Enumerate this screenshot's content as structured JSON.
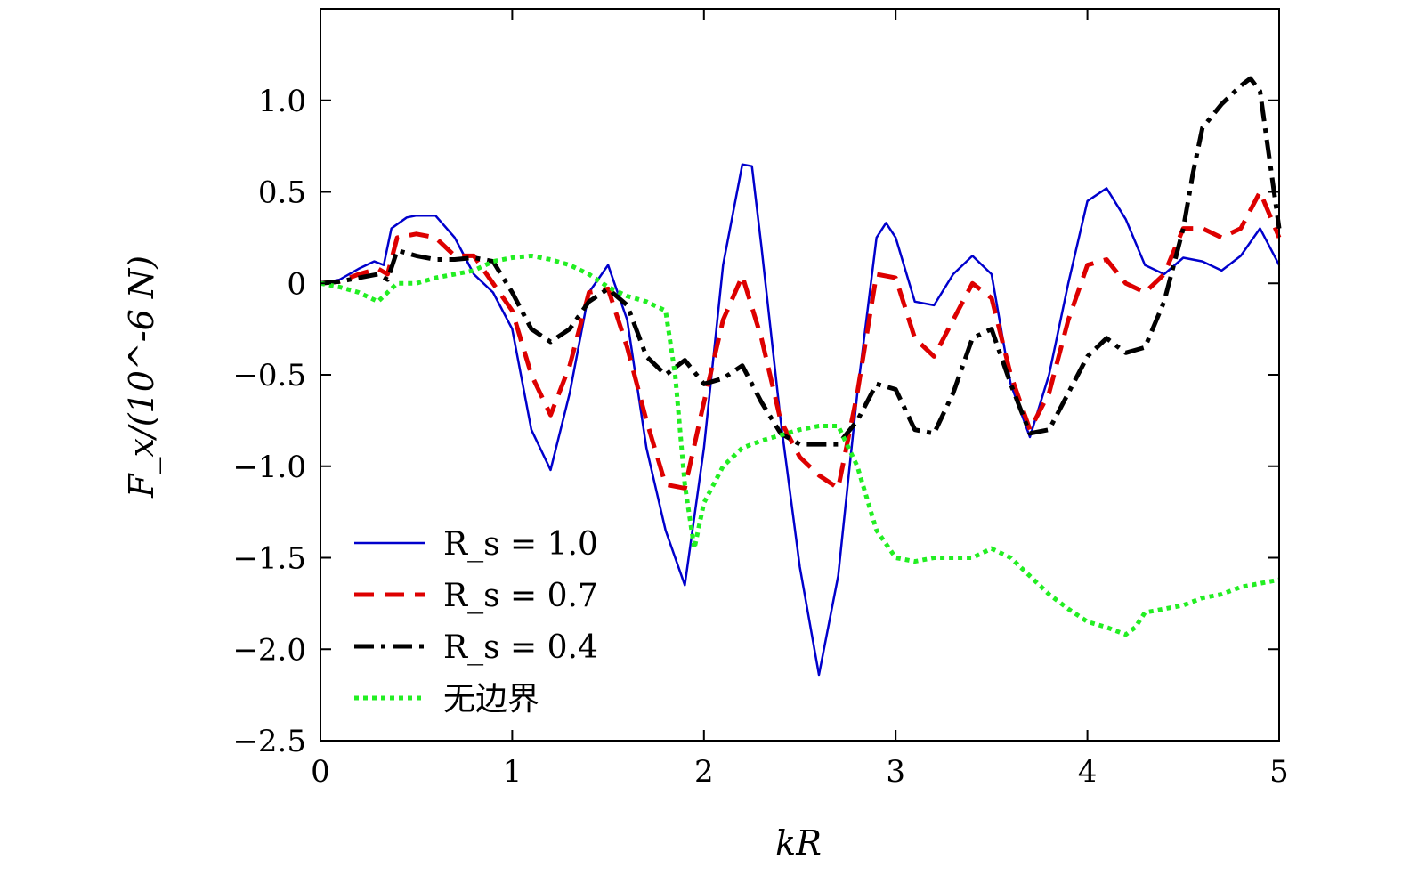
{
  "chart_data": {
    "type": "line",
    "xlabel": "kR",
    "ylabel": "F_x/(10^-6 N)",
    "xlim": [
      0,
      5
    ],
    "ylim": [
      -2.5,
      1.5
    ],
    "xticks": [
      0,
      1,
      2,
      3,
      4,
      5
    ],
    "xtick_labels": [
      "0",
      "1",
      "2",
      "3",
      "4",
      "5"
    ],
    "yticks": [
      1.0,
      0.5,
      0,
      -0.5,
      -1.0,
      -1.5,
      -2.0,
      -2.5
    ],
    "ytick_labels": [
      "1.0",
      "0.5",
      "0",
      "−0.5",
      "−1.0",
      "−1.5",
      "−2.0",
      "−2.5"
    ],
    "grid": false,
    "legend_position": "bottom-left",
    "series": [
      {
        "name": "Rs = 1.0",
        "legend_label": "R_s = 1.0",
        "color": "#0000cc",
        "style": "solid",
        "x": [
          0,
          0.1,
          0.2,
          0.28,
          0.33,
          0.37,
          0.45,
          0.5,
          0.6,
          0.7,
          0.8,
          0.9,
          1.0,
          1.1,
          1.2,
          1.3,
          1.4,
          1.5,
          1.6,
          1.7,
          1.8,
          1.9,
          2.0,
          2.1,
          2.2,
          2.25,
          2.3,
          2.4,
          2.5,
          2.6,
          2.7,
          2.8,
          2.9,
          2.95,
          3.0,
          3.1,
          3.2,
          3.3,
          3.4,
          3.5,
          3.6,
          3.7,
          3.8,
          3.9,
          4.0,
          4.1,
          4.2,
          4.3,
          4.4,
          4.5,
          4.6,
          4.7,
          4.8,
          4.9,
          5.0
        ],
        "y": [
          0,
          0.02,
          0.08,
          0.12,
          0.1,
          0.3,
          0.36,
          0.37,
          0.37,
          0.25,
          0.05,
          -0.05,
          -0.25,
          -0.8,
          -1.02,
          -0.6,
          -0.05,
          0.1,
          -0.2,
          -0.9,
          -1.35,
          -1.65,
          -0.9,
          0.1,
          0.65,
          0.64,
          0.2,
          -0.75,
          -1.55,
          -2.14,
          -1.6,
          -0.6,
          0.25,
          0.33,
          0.25,
          -0.1,
          -0.12,
          0.05,
          0.15,
          0.05,
          -0.55,
          -0.84,
          -0.5,
          0.0,
          0.45,
          0.52,
          0.35,
          0.1,
          0.05,
          0.14,
          0.12,
          0.07,
          0.15,
          0.3,
          0.1
        ]
      },
      {
        "name": "Rs = 0.7",
        "legend_label": "R_s = 0.7",
        "color": "#dd0000",
        "style": "dashed",
        "x": [
          0,
          0.1,
          0.2,
          0.3,
          0.35,
          0.4,
          0.5,
          0.6,
          0.7,
          0.8,
          0.9,
          1.0,
          1.1,
          1.2,
          1.3,
          1.4,
          1.5,
          1.6,
          1.7,
          1.8,
          1.9,
          2.0,
          2.1,
          2.2,
          2.3,
          2.4,
          2.5,
          2.6,
          2.7,
          2.8,
          2.9,
          3.0,
          3.1,
          3.2,
          3.3,
          3.4,
          3.5,
          3.6,
          3.7,
          3.8,
          3.9,
          4.0,
          4.1,
          4.2,
          4.3,
          4.4,
          4.5,
          4.6,
          4.7,
          4.8,
          4.9,
          5.0
        ],
        "y": [
          0,
          0.01,
          0.05,
          0.08,
          0.05,
          0.25,
          0.27,
          0.25,
          0.15,
          0.15,
          0.0,
          -0.15,
          -0.5,
          -0.72,
          -0.45,
          -0.05,
          -0.03,
          -0.35,
          -0.75,
          -1.1,
          -1.12,
          -0.65,
          -0.2,
          0.04,
          -0.3,
          -0.75,
          -0.95,
          -1.05,
          -1.12,
          -0.6,
          0.05,
          0.03,
          -0.3,
          -0.4,
          -0.2,
          0.0,
          -0.08,
          -0.5,
          -0.8,
          -0.6,
          -0.2,
          0.1,
          0.13,
          0.0,
          -0.05,
          0.05,
          0.3,
          0.3,
          0.25,
          0.3,
          0.5,
          0.25
        ]
      },
      {
        "name": "Rs = 0.4",
        "legend_label": "R_s = 0.4",
        "color": "#000000",
        "style": "dashdot",
        "x": [
          0,
          0.1,
          0.2,
          0.3,
          0.35,
          0.4,
          0.5,
          0.6,
          0.7,
          0.8,
          0.9,
          1.0,
          1.1,
          1.2,
          1.3,
          1.4,
          1.5,
          1.6,
          1.7,
          1.8,
          1.9,
          2.0,
          2.1,
          2.2,
          2.3,
          2.4,
          2.5,
          2.6,
          2.7,
          2.8,
          2.9,
          3.0,
          3.1,
          3.2,
          3.3,
          3.4,
          3.5,
          3.6,
          3.7,
          3.8,
          3.9,
          4.0,
          4.1,
          4.2,
          4.3,
          4.4,
          4.5,
          4.55,
          4.6,
          4.7,
          4.8,
          4.85,
          4.9,
          5.0
        ],
        "y": [
          0,
          0.01,
          0.03,
          0.05,
          0.02,
          0.18,
          0.15,
          0.13,
          0.13,
          0.14,
          0.12,
          -0.05,
          -0.25,
          -0.32,
          -0.25,
          -0.1,
          -0.03,
          -0.12,
          -0.4,
          -0.5,
          -0.42,
          -0.55,
          -0.52,
          -0.45,
          -0.65,
          -0.82,
          -0.88,
          -0.88,
          -0.88,
          -0.75,
          -0.55,
          -0.58,
          -0.8,
          -0.82,
          -0.6,
          -0.3,
          -0.25,
          -0.55,
          -0.82,
          -0.8,
          -0.6,
          -0.4,
          -0.3,
          -0.38,
          -0.35,
          -0.1,
          0.3,
          0.6,
          0.85,
          0.98,
          1.08,
          1.12,
          1.05,
          0.3
        ]
      },
      {
        "name": "无边界",
        "legend_label": "无边界",
        "color": "#22ee22",
        "style": "dotted",
        "x": [
          0,
          0.1,
          0.2,
          0.3,
          0.35,
          0.4,
          0.5,
          0.6,
          0.7,
          0.8,
          0.9,
          1.0,
          1.1,
          1.2,
          1.3,
          1.4,
          1.5,
          1.6,
          1.7,
          1.8,
          1.85,
          1.9,
          1.95,
          2.0,
          2.1,
          2.2,
          2.3,
          2.4,
          2.5,
          2.6,
          2.7,
          2.8,
          2.9,
          3.0,
          3.1,
          3.2,
          3.25,
          3.3,
          3.4,
          3.5,
          3.6,
          3.7,
          3.8,
          3.9,
          4.0,
          4.1,
          4.2,
          4.25,
          4.3,
          4.4,
          4.5,
          4.6,
          4.7,
          4.8,
          4.9,
          5.0
        ],
        "y": [
          0,
          -0.02,
          -0.05,
          -0.1,
          -0.05,
          0.0,
          0.0,
          0.03,
          0.05,
          0.07,
          0.12,
          0.14,
          0.15,
          0.13,
          0.1,
          0.05,
          -0.02,
          -0.07,
          -0.1,
          -0.15,
          -0.5,
          -1.1,
          -1.45,
          -1.2,
          -1.0,
          -0.9,
          -0.86,
          -0.83,
          -0.8,
          -0.78,
          -0.78,
          -1.0,
          -1.35,
          -1.5,
          -1.52,
          -1.5,
          -1.5,
          -1.5,
          -1.5,
          -1.45,
          -1.5,
          -1.6,
          -1.7,
          -1.78,
          -1.85,
          -1.88,
          -1.92,
          -1.88,
          -1.8,
          -1.78,
          -1.76,
          -1.72,
          -1.7,
          -1.66,
          -1.64,
          -1.62
        ]
      }
    ]
  }
}
